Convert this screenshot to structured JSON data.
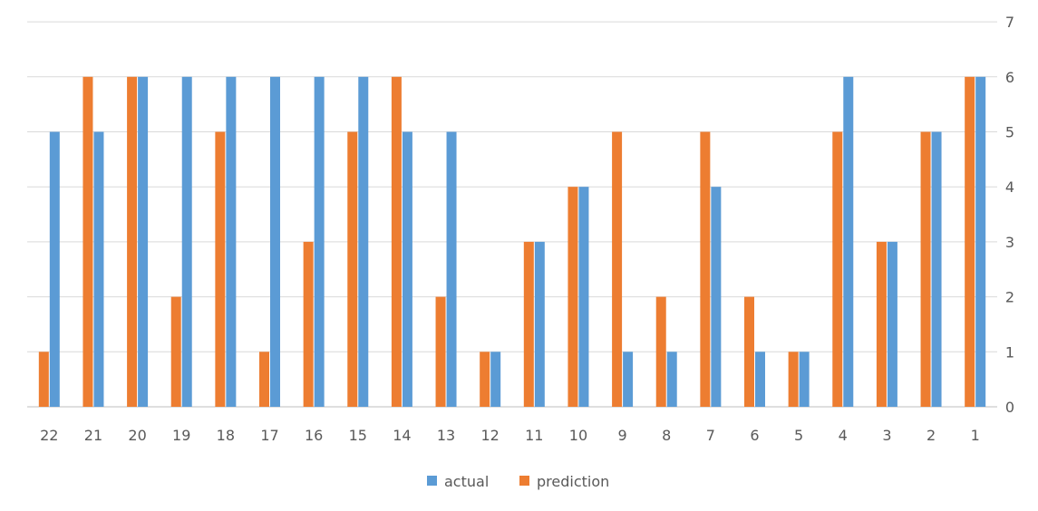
{
  "chart_data": {
    "type": "bar",
    "categories": [
      "22",
      "21",
      "20",
      "19",
      "18",
      "17",
      "16",
      "15",
      "14",
      "13",
      "12",
      "11",
      "10",
      "9",
      "8",
      "7",
      "6",
      "5",
      "4",
      "3",
      "2",
      "1"
    ],
    "series": [
      {
        "name": "prediction",
        "color": "#ED7D31",
        "values": [
          1,
          6,
          6,
          2,
          5,
          1,
          3,
          5,
          6,
          2,
          1,
          3,
          4,
          5,
          2,
          5,
          2,
          1,
          5,
          3,
          5,
          6
        ]
      },
      {
        "name": "actual",
        "color": "#5B9BD5",
        "values": [
          5,
          5,
          6,
          6,
          6,
          6,
          6,
          6,
          5,
          5,
          1,
          3,
          4,
          1,
          1,
          4,
          1,
          1,
          6,
          3,
          5,
          6
        ]
      }
    ],
    "ylim": [
      0,
      7
    ],
    "yticks": [
      "0",
      "1",
      "2",
      "3",
      "4",
      "5",
      "6",
      "7"
    ],
    "y_axis_side": "right",
    "grid": true,
    "legend": {
      "placement": "bottom",
      "items": [
        {
          "label": "actual",
          "color": "#5B9BD5"
        },
        {
          "label": "prediction",
          "color": "#ED7D31"
        }
      ]
    }
  }
}
